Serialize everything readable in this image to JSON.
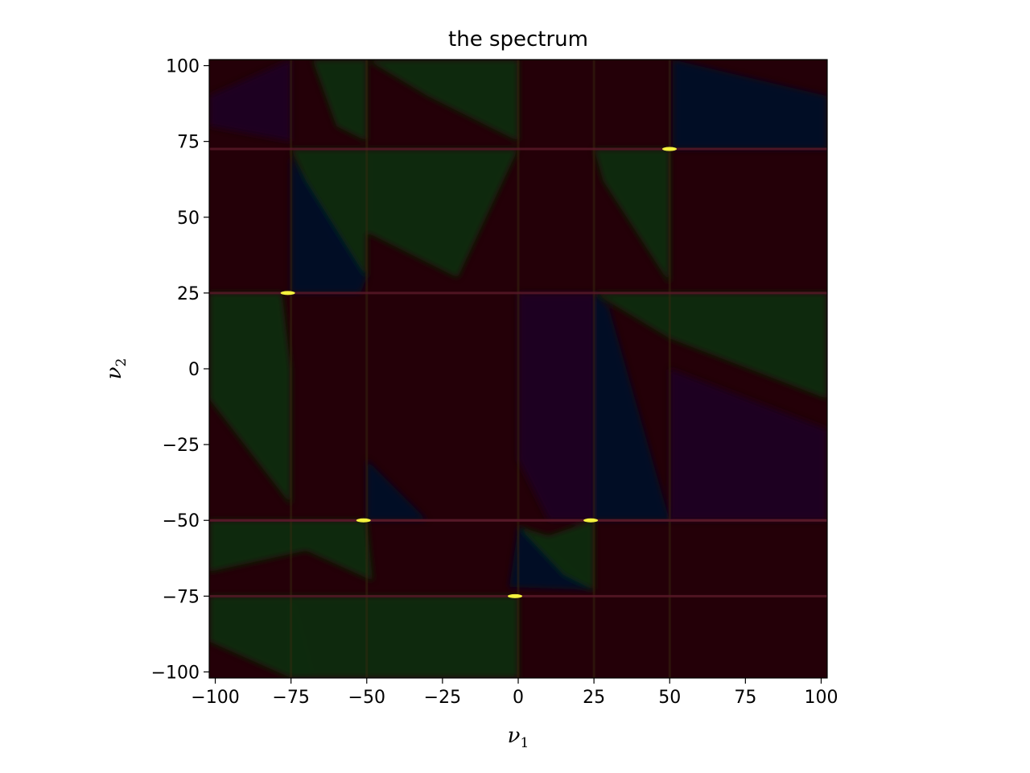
{
  "chart_data": {
    "type": "heatmap",
    "title": "the spectrum",
    "xlabel": "ν",
    "xlabel_sub": "1",
    "ylabel": "ν",
    "ylabel_sub": "2",
    "xlim": [
      -102,
      102
    ],
    "ylim": [
      -102,
      102
    ],
    "xticks": [
      -100,
      -75,
      -50,
      -25,
      0,
      25,
      50,
      75,
      100
    ],
    "yticks": [
      -100,
      -75,
      -50,
      -25,
      0,
      25,
      50,
      75,
      100
    ],
    "xtick_labels": [
      "−100",
      "−75",
      "−50",
      "−25",
      "0",
      "25",
      "50",
      "75",
      "100"
    ],
    "ytick_labels": [
      "−100",
      "−75",
      "−50",
      "−25",
      "0",
      "25",
      "50",
      "75",
      "100"
    ],
    "grid": false,
    "colors": {
      "background": "#240008",
      "green_region": "#0e2c08",
      "blue_region": "#060828",
      "purple_region": "#1c0424",
      "bright_line_core": "#ffff40",
      "bright_line_glow": "#ff2060"
    },
    "horizontal_lines": [
      {
        "y": 72.5,
        "bright_x": 51
      },
      {
        "y": 25,
        "bright_x": -75
      },
      {
        "y": -50,
        "bright_x": -50
      },
      {
        "y": -50,
        "bright_x": 25
      },
      {
        "y": -75,
        "bright_x": 0
      }
    ],
    "vertical_edges": [
      -75,
      -50,
      0,
      25,
      50
    ],
    "regions": [
      {
        "color": "green",
        "points": [
          [
            -102,
            25
          ],
          [
            -78,
            25
          ],
          [
            -75,
            0
          ],
          [
            -75,
            -45
          ],
          [
            -102,
            -10
          ]
        ]
      },
      {
        "color": "blue",
        "points": [
          [
            -50,
            -50
          ],
          [
            -50,
            -30
          ],
          [
            -30,
            -50
          ]
        ]
      },
      {
        "color": "blue",
        "points": [
          [
            25,
            25
          ],
          [
            30,
            20
          ],
          [
            50,
            -50
          ],
          [
            25,
            -50
          ]
        ]
      },
      {
        "color": "purple",
        "points": [
          [
            50,
            -50
          ],
          [
            50,
            0
          ],
          [
            102,
            -20
          ],
          [
            102,
            -50
          ]
        ]
      },
      {
        "color": "green",
        "points": [
          [
            -102,
            -50
          ],
          [
            -50,
            -50
          ],
          [
            -48,
            -70
          ],
          [
            -70,
            -60
          ],
          [
            -102,
            -67
          ]
        ]
      },
      {
        "color": "blue",
        "points": [
          [
            0,
            -52
          ],
          [
            -3,
            -72
          ],
          [
            25,
            -73
          ],
          [
            10,
            -60
          ]
        ]
      },
      {
        "color": "green",
        "points": [
          [
            0,
            -52
          ],
          [
            10,
            -55
          ],
          [
            25,
            -50
          ],
          [
            25,
            -73
          ],
          [
            15,
            -68
          ]
        ]
      },
      {
        "color": "green",
        "points": [
          [
            -102,
            -75
          ],
          [
            0,
            -75
          ],
          [
            0,
            -102
          ],
          [
            -75,
            -102
          ],
          [
            -102,
            -90
          ]
        ]
      },
      {
        "color": "green",
        "points": [
          [
            -75,
            72.5
          ],
          [
            -50,
            72.5
          ],
          [
            -50,
            30
          ],
          [
            -62,
            45
          ]
        ]
      },
      {
        "color": "blue",
        "points": [
          [
            -75,
            25
          ],
          [
            -75,
            70
          ],
          [
            -50,
            30
          ],
          [
            -52,
            25
          ]
        ]
      },
      {
        "color": "green",
        "points": [
          [
            -50,
            72.5
          ],
          [
            0,
            72.5
          ],
          [
            -20,
            30
          ],
          [
            -50,
            45
          ]
        ]
      },
      {
        "color": "green",
        "points": [
          [
            25,
            72.5
          ],
          [
            50,
            72.5
          ],
          [
            50,
            28
          ],
          [
            28,
            62
          ]
        ]
      },
      {
        "color": "blue",
        "points": [
          [
            51,
            72.5
          ],
          [
            102,
            72.5
          ],
          [
            102,
            90
          ],
          [
            51,
            102
          ]
        ]
      },
      {
        "color": "green",
        "points": [
          [
            -68,
            102
          ],
          [
            -50,
            102
          ],
          [
            -50,
            75
          ],
          [
            -60,
            80
          ]
        ]
      },
      {
        "color": "purple",
        "points": [
          [
            -102,
            80
          ],
          [
            -75,
            75
          ],
          [
            -75,
            102
          ],
          [
            -102,
            90
          ]
        ]
      },
      {
        "color": "green",
        "points": [
          [
            -50,
            102
          ],
          [
            0,
            102
          ],
          [
            0,
            75
          ],
          [
            -30,
            90
          ]
        ]
      },
      {
        "color": "green",
        "points": [
          [
            25,
            25
          ],
          [
            102,
            25
          ],
          [
            102,
            -10
          ],
          [
            50,
            10
          ]
        ]
      },
      {
        "color": "purple",
        "points": [
          [
            0,
            -30
          ],
          [
            0,
            25
          ],
          [
            25,
            25
          ],
          [
            25,
            -50
          ],
          [
            10,
            -50
          ]
        ]
      },
      {
        "color": "green",
        "points": [
          [
            -75,
            -75
          ],
          [
            -68,
            -102
          ],
          [
            -75,
            -102
          ]
        ]
      }
    ]
  }
}
